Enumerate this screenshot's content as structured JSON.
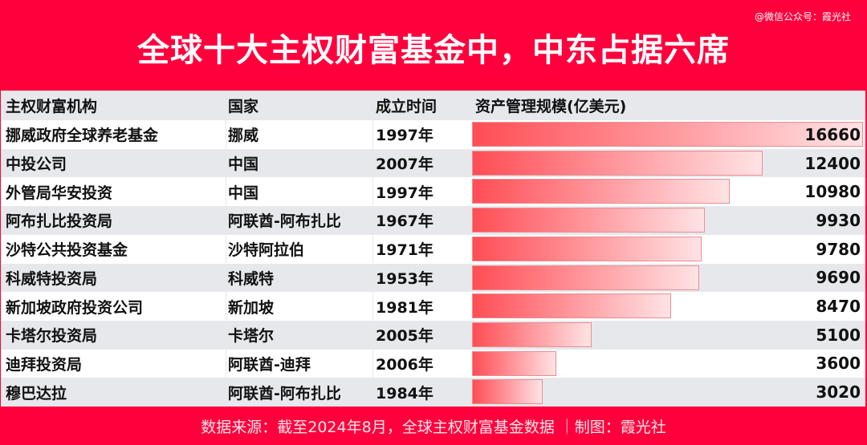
{
  "header": {
    "title": "全球十大主权财富基金中，中东占据六席",
    "credit": "@微信公众号：霞光社"
  },
  "chart_data": {
    "type": "table",
    "columns": [
      "主权财富机构",
      "国家",
      "成立时间",
      "资产管理规模(亿美元)"
    ],
    "rows": [
      {
        "name": "挪威政府全球养老基金",
        "country": "挪威",
        "year": "1997年",
        "value": 16660
      },
      {
        "name": "中投公司",
        "country": "中国",
        "year": "2007年",
        "value": 12400
      },
      {
        "name": "外管局华安投资",
        "country": "中国",
        "year": "1997年",
        "value": 10980
      },
      {
        "name": "阿布扎比投资局",
        "country": "阿联酋-阿布扎比",
        "year": "1967年",
        "value": 9930
      },
      {
        "name": "沙特公共投资基金",
        "country": "沙特阿拉伯",
        "year": "1971年",
        "value": 9780
      },
      {
        "name": "科威特投资局",
        "country": "科威特",
        "year": "1953年",
        "value": 9690
      },
      {
        "name": "新加坡政府投资公司",
        "country": "新加坡",
        "year": "1981年",
        "value": 8470
      },
      {
        "name": "卡塔尔投资局",
        "country": "卡塔尔",
        "year": "2005年",
        "value": 5100
      },
      {
        "name": "迪拜投资局",
        "country": "阿联酋-迪拜",
        "year": "2006年",
        "value": 3600
      },
      {
        "name": "穆巴达拉",
        "country": "阿联酋-阿布扎比",
        "year": "1984年",
        "value": 3020
      }
    ],
    "bar_max": 16660,
    "bar_color": "#ff4d55"
  },
  "footer": {
    "source": "数据来源：截至2024年8月，全球主权财富基金数据 ｜制图：霞光社"
  }
}
